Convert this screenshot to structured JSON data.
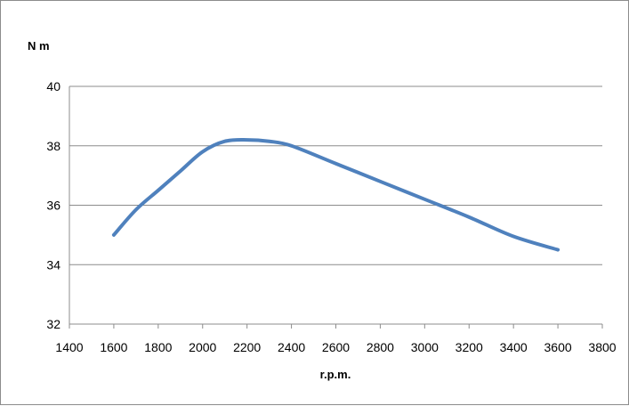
{
  "chart_data": {
    "type": "line",
    "title": "",
    "xlabel": "r.p.m.",
    "ylabel": "N m",
    "xlim": [
      1400,
      3800
    ],
    "ylim": [
      32,
      40
    ],
    "xticks": [
      1400,
      1600,
      1800,
      2000,
      2200,
      2400,
      2600,
      2800,
      3000,
      3200,
      3400,
      3600,
      3800
    ],
    "yticks": [
      32,
      34,
      36,
      38,
      40
    ],
    "grid": "horizontal",
    "legend": "none",
    "series": [
      {
        "color": "#4f81bd",
        "x": [
          1600,
          1700,
          1800,
          1900,
          2000,
          2100,
          2200,
          2300,
          2400,
          2600,
          2800,
          3000,
          3200,
          3400,
          3600
        ],
        "y": [
          35.0,
          35.85,
          36.5,
          37.15,
          37.8,
          38.15,
          38.2,
          38.15,
          38.0,
          37.4,
          36.8,
          36.2,
          35.6,
          34.95,
          34.5
        ]
      }
    ]
  }
}
